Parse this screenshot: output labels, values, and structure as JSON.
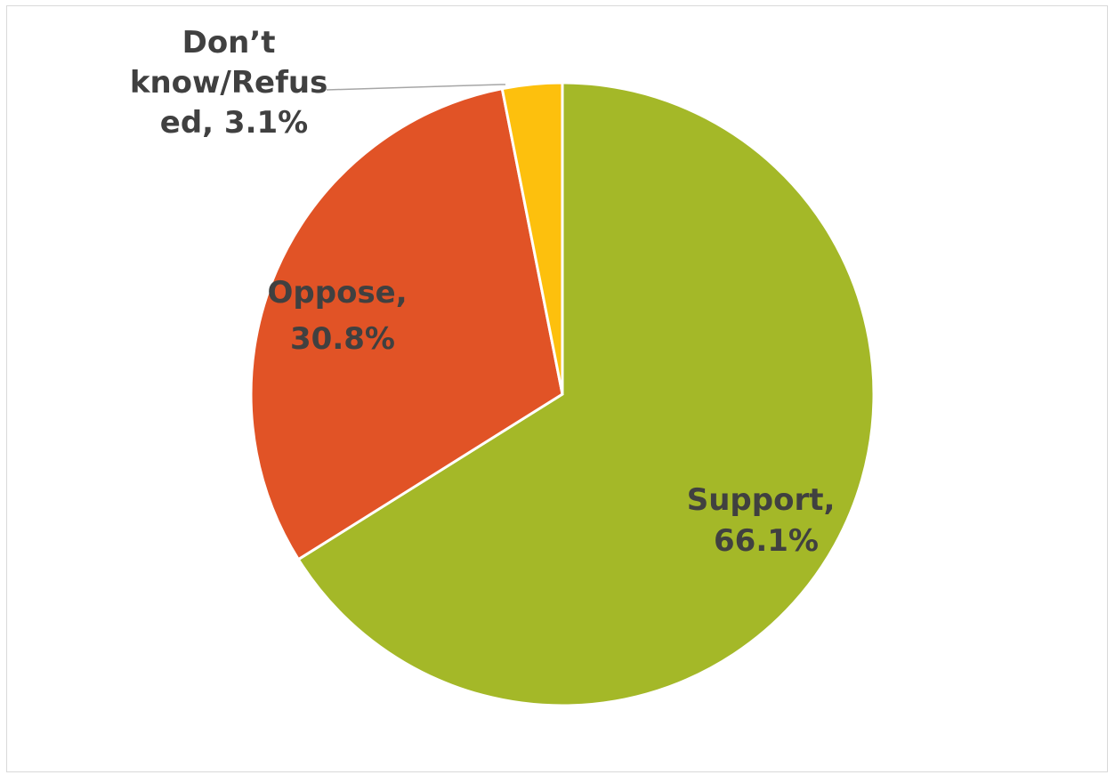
{
  "chart_data": {
    "type": "pie",
    "title": "",
    "slices": [
      {
        "label": "Support",
        "value": 66.1,
        "display": "66.1%",
        "color": "#a4b828"
      },
      {
        "label": "Oppose",
        "value": 30.8,
        "display": "30.8%",
        "color": "#e15326"
      },
      {
        "label": "Don’t know/Refused",
        "value": 3.1,
        "display": "3.1%",
        "color": "#fdc00d"
      }
    ],
    "label_text": {
      "support": [
        "Support,",
        "66.1%"
      ],
      "oppose": [
        "Oppose,",
        "30.8%"
      ],
      "dontknow": [
        "Don’t",
        "know/Refus",
        "ed, 3.1%"
      ]
    },
    "start_angle": "12 o'clock",
    "direction": "clockwise",
    "legend": "none"
  }
}
